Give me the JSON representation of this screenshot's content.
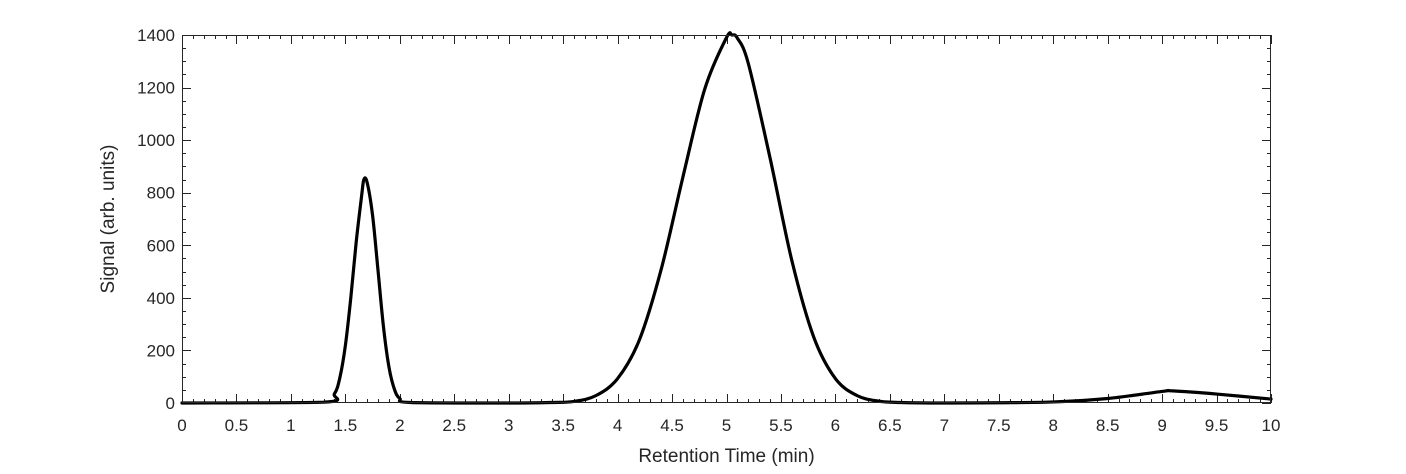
{
  "chart_data": {
    "type": "line",
    "title": "",
    "xlabel": "Retention Time (min)",
    "ylabel": "Signal (arb. units)",
    "xlim": [
      0,
      10
    ],
    "ylim": [
      0,
      1400
    ],
    "x_ticks": [
      0,
      0.5,
      1,
      1.5,
      2,
      2.5,
      3,
      3.5,
      4,
      4.5,
      5,
      5.5,
      6,
      6.5,
      7,
      7.5,
      8,
      8.5,
      9,
      9.5,
      10
    ],
    "x_tick_labels": [
      "0",
      "0.5",
      "1",
      "1.5",
      "2",
      "2.5",
      "3",
      "3.5",
      "4",
      "4.5",
      "5",
      "5.5",
      "6",
      "6.5",
      "7",
      "7.5",
      "8",
      "8.5",
      "9",
      "9.5",
      "10"
    ],
    "y_ticks": [
      0,
      200,
      400,
      600,
      800,
      1000,
      1200,
      1400
    ],
    "y_tick_labels": [
      "0",
      "200",
      "400",
      "600",
      "800",
      "1000",
      "1200",
      "1400"
    ],
    "grid": false,
    "box": true,
    "legend": "none",
    "line_color": "#000000",
    "series": [
      {
        "x": [
          0,
          1.3,
          1.4,
          1.45,
          1.5,
          1.55,
          1.6,
          1.65,
          1.67,
          1.7,
          1.75,
          1.8,
          1.85,
          1.9,
          1.95,
          2.0,
          2.1,
          3.0,
          3.4,
          3.6,
          3.8,
          4.0,
          4.2,
          4.4,
          4.6,
          4.8,
          5.0,
          5.05,
          5.1,
          5.2,
          5.4,
          5.6,
          5.8,
          6.0,
          6.2,
          6.4,
          6.6,
          7.0,
          7.5,
          8.0,
          8.5,
          9.0,
          9.1,
          9.5,
          10.0
        ],
        "y": [
          0,
          3,
          35,
          97,
          218,
          400,
          614,
          790,
          850,
          839,
          714,
          504,
          290,
          138,
          53,
          17,
          2,
          0,
          2,
          6,
          28,
          93,
          240,
          508,
          860,
          1194,
          1390,
          1400,
          1388,
          1292,
          932,
          542,
          252,
          93,
          28,
          7,
          2,
          0,
          1,
          4,
          17,
          44,
          46,
          34,
          15
        ]
      }
    ]
  }
}
